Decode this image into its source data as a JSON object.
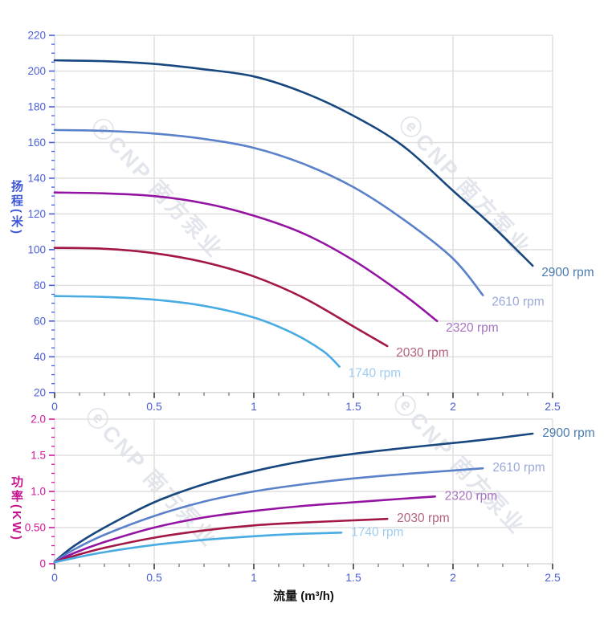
{
  "watermark": {
    "text": "ⓔCNP 南方泵业",
    "color": "rgba(125,140,170,0.22)"
  },
  "axis_colors": {
    "x_tick_labels": "#4a5ed9",
    "head_axis": "#4a5ed9",
    "power_axis": "#d4149c"
  },
  "grid_color": "#dfdfdf",
  "chart_data": [
    {
      "type": "line",
      "title": "",
      "ylabel": "扬程(米)",
      "xlabel": "",
      "x_range": [
        0,
        2.5
      ],
      "y_range": [
        20,
        220
      ],
      "grid": true,
      "legend_position": "right-of-curve-ends",
      "x_tick_values": [
        0,
        0.5,
        1,
        1.5,
        2,
        2.5
      ],
      "x_tick_labels": [
        "0",
        "0.5",
        "1",
        "1.5",
        "2",
        "2.5"
      ],
      "x_minor_step": 0.125,
      "y_tick_values": [
        220,
        200,
        180,
        160,
        140,
        120,
        100,
        80,
        60,
        40,
        20
      ],
      "y_tick_labels": [
        "220",
        "200",
        "180",
        "160",
        "140",
        "120",
        "100",
        "80",
        "60",
        "40",
        "20"
      ],
      "y_minor_step": 5,
      "series": [
        {
          "name": "2900 rpm",
          "color": "#17477e",
          "label_color": "#4b7bae",
          "points": [
            [
              0,
              206
            ],
            [
              0.25,
              205.5
            ],
            [
              0.5,
              204
            ],
            [
              0.75,
              201
            ],
            [
              1.0,
              197
            ],
            [
              1.25,
              188
            ],
            [
              1.5,
              175
            ],
            [
              1.75,
              158
            ],
            [
              2.0,
              133
            ],
            [
              2.2,
              113
            ],
            [
              2.4,
              91
            ]
          ]
        },
        {
          "name": "2610 rpm",
          "color": "#5a81c9",
          "label_color": "#9aa9da",
          "points": [
            [
              0,
              167
            ],
            [
              0.25,
              166.5
            ],
            [
              0.5,
              165
            ],
            [
              0.75,
              162
            ],
            [
              1.0,
              157
            ],
            [
              1.25,
              148
            ],
            [
              1.5,
              135
            ],
            [
              1.75,
              117
            ],
            [
              2.0,
              95
            ],
            [
              2.15,
              74.5
            ]
          ]
        },
        {
          "name": "2320 rpm",
          "color": "#9414a2",
          "label_color": "#a873c0",
          "points": [
            [
              0,
              132
            ],
            [
              0.25,
              131.5
            ],
            [
              0.5,
              130
            ],
            [
              0.75,
              126
            ],
            [
              1.0,
              119
            ],
            [
              1.25,
              109
            ],
            [
              1.5,
              94
            ],
            [
              1.75,
              75
            ],
            [
              1.92,
              60
            ]
          ]
        },
        {
          "name": "2030 rpm",
          "color": "#a21744",
          "label_color": "#b4627f",
          "points": [
            [
              0,
              101
            ],
            [
              0.25,
              100.5
            ],
            [
              0.5,
              98
            ],
            [
              0.75,
              93
            ],
            [
              1.0,
              85
            ],
            [
              1.25,
              73
            ],
            [
              1.5,
              57
            ],
            [
              1.67,
              46
            ]
          ]
        },
        {
          "name": "1740 rpm",
          "color": "#48ace2",
          "label_color": "#9fcdf0",
          "points": [
            [
              0,
              74
            ],
            [
              0.25,
              73.5
            ],
            [
              0.5,
              72
            ],
            [
              0.75,
              68.5
            ],
            [
              1.0,
              62
            ],
            [
              1.2,
              53
            ],
            [
              1.35,
              43
            ],
            [
              1.43,
              34.5
            ]
          ]
        }
      ]
    },
    {
      "type": "line",
      "title": "",
      "ylabel": "功率(KW)",
      "xlabel": "流量 (m³/h)",
      "x_range": [
        0,
        2.5
      ],
      "y_range": [
        0,
        2
      ],
      "grid": true,
      "legend_position": "right-of-curve-ends",
      "x_tick_values": [
        0,
        0.5,
        1,
        1.5,
        2,
        2.5
      ],
      "x_tick_labels": [
        "0",
        "0.5",
        "1",
        "1.5",
        "2",
        "2.5"
      ],
      "x_minor_step": 0.125,
      "y_tick_values": [
        2,
        1.5,
        1,
        0.5,
        0
      ],
      "y_tick_labels": [
        "2.0",
        "1.5",
        "1.0",
        "0.50",
        "0"
      ],
      "y_minor_step": 0.125,
      "series": [
        {
          "name": "2900 rpm",
          "color": "#17477e",
          "label_color": "#4b7bae",
          "points": [
            [
              0,
              0.03
            ],
            [
              0.1,
              0.25
            ],
            [
              0.25,
              0.5
            ],
            [
              0.5,
              0.85
            ],
            [
              0.75,
              1.1
            ],
            [
              1.0,
              1.28
            ],
            [
              1.25,
              1.42
            ],
            [
              1.5,
              1.52
            ],
            [
              1.75,
              1.6
            ],
            [
              2.0,
              1.67
            ],
            [
              2.2,
              1.73
            ],
            [
              2.4,
              1.8
            ]
          ]
        },
        {
          "name": "2610 rpm",
          "color": "#5a81c9",
          "label_color": "#9aa9da",
          "points": [
            [
              0,
              0.03
            ],
            [
              0.1,
              0.2
            ],
            [
              0.25,
              0.4
            ],
            [
              0.5,
              0.66
            ],
            [
              0.75,
              0.86
            ],
            [
              1.0,
              1.0
            ],
            [
              1.25,
              1.1
            ],
            [
              1.5,
              1.18
            ],
            [
              1.75,
              1.24
            ],
            [
              2.0,
              1.29
            ],
            [
              2.15,
              1.32
            ]
          ]
        },
        {
          "name": "2320 rpm",
          "color": "#9414a2",
          "label_color": "#a873c0",
          "points": [
            [
              0,
              0.02
            ],
            [
              0.1,
              0.15
            ],
            [
              0.25,
              0.3
            ],
            [
              0.5,
              0.5
            ],
            [
              0.75,
              0.64
            ],
            [
              1.0,
              0.73
            ],
            [
              1.25,
              0.8
            ],
            [
              1.5,
              0.85
            ],
            [
              1.75,
              0.9
            ],
            [
              1.91,
              0.93
            ]
          ]
        },
        {
          "name": "2030 rpm",
          "color": "#a21744",
          "label_color": "#b4627f",
          "points": [
            [
              0,
              0.02
            ],
            [
              0.1,
              0.11
            ],
            [
              0.25,
              0.22
            ],
            [
              0.5,
              0.36
            ],
            [
              0.75,
              0.46
            ],
            [
              1.0,
              0.53
            ],
            [
              1.25,
              0.57
            ],
            [
              1.5,
              0.6
            ],
            [
              1.67,
              0.62
            ]
          ]
        },
        {
          "name": "1740 rpm",
          "color": "#48ace2",
          "label_color": "#9fcdf0",
          "points": [
            [
              0,
              0.02
            ],
            [
              0.1,
              0.08
            ],
            [
              0.25,
              0.16
            ],
            [
              0.5,
              0.26
            ],
            [
              0.75,
              0.33
            ],
            [
              1.0,
              0.38
            ],
            [
              1.2,
              0.41
            ],
            [
              1.44,
              0.43
            ]
          ]
        }
      ]
    }
  ]
}
